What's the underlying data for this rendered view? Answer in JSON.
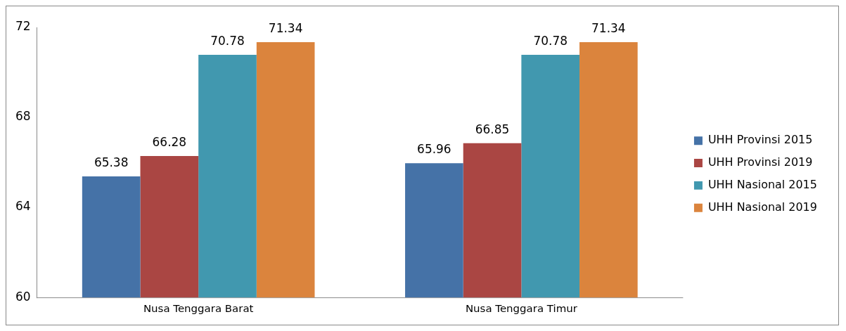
{
  "chart_data": {
    "type": "bar",
    "categories": [
      "Nusa Tenggara Barat",
      "Nusa Tenggara Timur"
    ],
    "series": [
      {
        "name": "UHH Provinsi 2015",
        "color": "#4572a7",
        "values": [
          65.38,
          65.96
        ]
      },
      {
        "name": "UHH Provinsi 2019",
        "color": "#aa4643",
        "values": [
          66.28,
          66.85
        ]
      },
      {
        "name": "UHH Nasional 2015",
        "color": "#4198af",
        "values": [
          70.78,
          70.78
        ]
      },
      {
        "name": "UHH Nasional 2019",
        "color": "#db843d",
        "values": [
          71.34,
          71.34
        ]
      }
    ],
    "ylim": [
      60,
      72
    ],
    "yticks": [
      60,
      64,
      68,
      72
    ],
    "grid": false,
    "legend": "right",
    "data_labels": true
  }
}
